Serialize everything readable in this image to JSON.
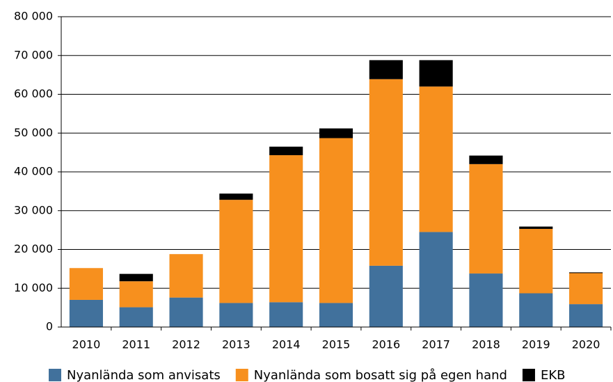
{
  "chart_data": {
    "type": "stacked_bar",
    "categories": [
      "2010",
      "2011",
      "2012",
      "2013",
      "2014",
      "2015",
      "2016",
      "2017",
      "2018",
      "2019",
      "2020"
    ],
    "series": [
      {
        "name": "Nyanlända som anvisats",
        "color": "#41719c",
        "values": [
          7000,
          5100,
          7600,
          6200,
          6400,
          6200,
          15800,
          24500,
          13800,
          8700,
          5900
        ]
      },
      {
        "name": "Nyanlända som bosatt sig på egen hand",
        "color": "#f7901e",
        "values": [
          8200,
          6700,
          11200,
          26600,
          37900,
          42500,
          48100,
          37500,
          28200,
          16600,
          8000
        ]
      },
      {
        "name": "EKB",
        "color": "#000000",
        "values": [
          0,
          1900,
          0,
          1600,
          2200,
          2500,
          4900,
          6800,
          2200,
          600,
          200
        ]
      }
    ],
    "ylim": [
      0,
      80000
    ],
    "yticks": [
      0,
      {
        "value": 10000,
        "label": "10 000"
      },
      {
        "value": 20000,
        "label": "20 000"
      },
      {
        "value": 30000,
        "label": "30 000"
      },
      {
        "value": 40000,
        "label": "40 000"
      },
      {
        "value": 50000,
        "label": "50 000"
      },
      {
        "value": 60000,
        "label": "60 000"
      },
      {
        "value": 70000,
        "label": "70 000"
      },
      {
        "value": 80000,
        "label": "80 000"
      }
    ],
    "grid": true
  }
}
